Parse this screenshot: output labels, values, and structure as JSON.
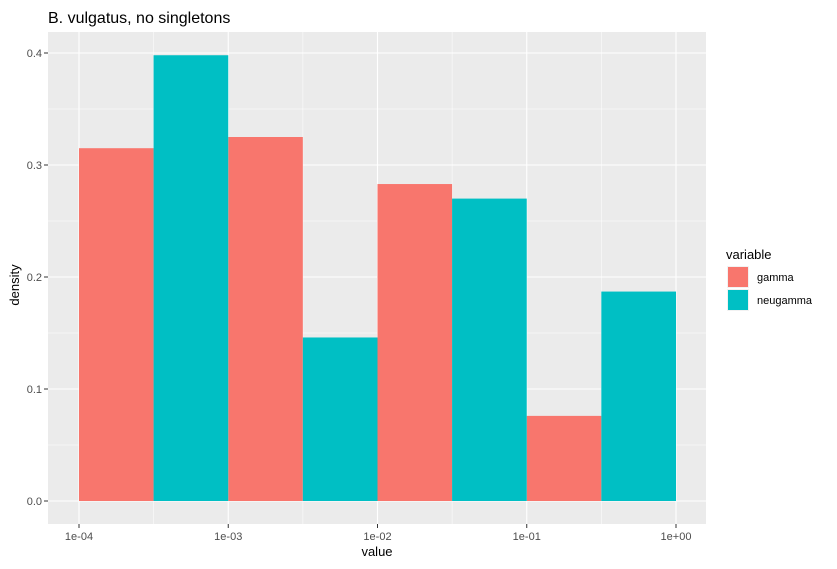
{
  "chart_data": {
    "type": "bar",
    "title": "B. vulgatus, no singletons",
    "xlabel": "value",
    "ylabel": "density",
    "x_scale": "log10",
    "x_ticks": [
      "1e-04",
      "1e-03",
      "1e-02",
      "1e-01",
      "1e+00"
    ],
    "y_ticks": [
      "0.0",
      "0.1",
      "0.2",
      "0.3",
      "0.4"
    ],
    "ylim": [
      0,
      0.42
    ],
    "grid": true,
    "legend": {
      "title": "variable",
      "position": "right"
    },
    "series": [
      {
        "name": "gamma",
        "color": "#F8766D",
        "bins": [
          {
            "x_from": 0.0001,
            "x_to": 0.000316,
            "value": 0.315
          },
          {
            "x_from": 0.001,
            "x_to": 0.00316,
            "value": 0.325
          },
          {
            "x_from": 0.01,
            "x_to": 0.0316,
            "value": 0.283
          },
          {
            "x_from": 0.1,
            "x_to": 0.316,
            "value": 0.076
          }
        ]
      },
      {
        "name": "neugamma",
        "color": "#00BFC4",
        "bins": [
          {
            "x_from": 0.000316,
            "x_to": 0.001,
            "value": 0.398
          },
          {
            "x_from": 0.00316,
            "x_to": 0.01,
            "value": 0.146
          },
          {
            "x_from": 0.0316,
            "x_to": 0.1,
            "value": 0.27
          },
          {
            "x_from": 0.316,
            "x_to": 1.0,
            "value": 0.187
          }
        ]
      }
    ]
  }
}
